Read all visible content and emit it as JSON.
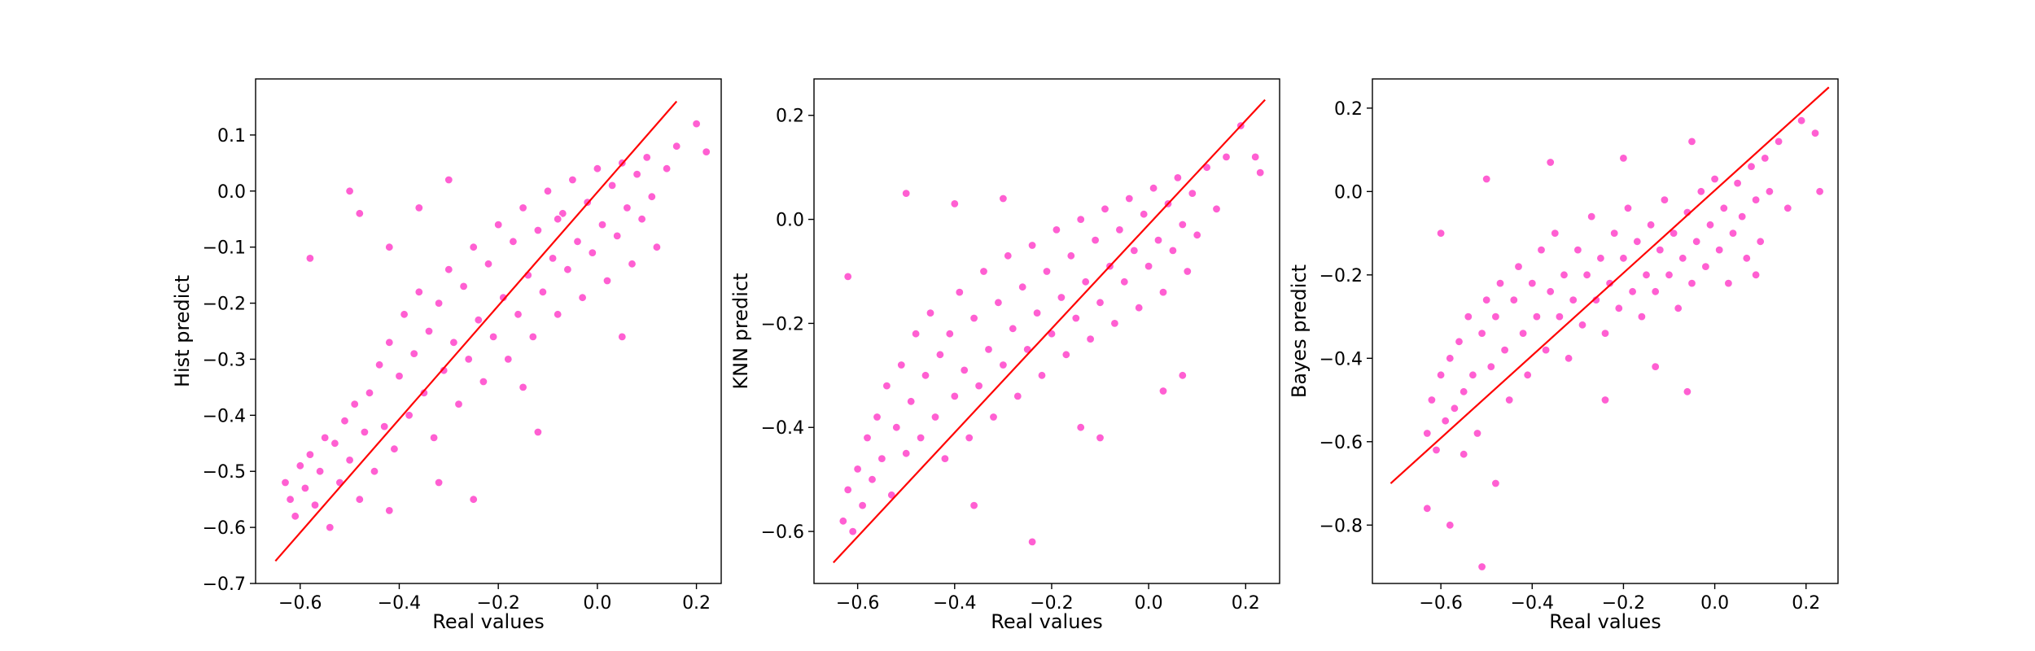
{
  "colors": {
    "points": "#ff5fd2",
    "reference_line": "#ff0000",
    "axes": "#000000",
    "background": "#ffffff"
  },
  "chart_data": [
    {
      "type": "scatter",
      "title": "",
      "xlabel": "Real values",
      "ylabel": "Hist predict",
      "xlim": [
        -0.69,
        0.25
      ],
      "ylim": [
        -0.7,
        0.2
      ],
      "xticks": [
        "−0.6",
        "−0.4",
        "−0.2",
        "0.0",
        "0.2"
      ],
      "xtick_values": [
        -0.6,
        -0.4,
        -0.2,
        0.0,
        0.2
      ],
      "yticks": [
        "−0.7",
        "−0.6",
        "−0.5",
        "−0.4",
        "−0.3",
        "−0.2",
        "−0.1",
        "0.0",
        "0.1"
      ],
      "ytick_values": [
        -0.7,
        -0.6,
        -0.5,
        -0.4,
        -0.3,
        -0.2,
        -0.1,
        0.0,
        0.1
      ],
      "reference_line": {
        "x": [
          -0.65,
          0.16
        ],
        "y": [
          -0.66,
          0.16
        ]
      },
      "grid": false,
      "legend": "none",
      "points": [
        [
          -0.63,
          -0.52
        ],
        [
          -0.62,
          -0.55
        ],
        [
          -0.61,
          -0.58
        ],
        [
          -0.6,
          -0.49
        ],
        [
          -0.59,
          -0.53
        ],
        [
          -0.58,
          -0.47
        ],
        [
          -0.57,
          -0.56
        ],
        [
          -0.56,
          -0.5
        ],
        [
          -0.55,
          -0.44
        ],
        [
          -0.54,
          -0.6
        ],
        [
          -0.53,
          -0.45
        ],
        [
          -0.52,
          -0.52
        ],
        [
          -0.51,
          -0.41
        ],
        [
          -0.5,
          -0.48
        ],
        [
          -0.49,
          -0.38
        ],
        [
          -0.48,
          -0.55
        ],
        [
          -0.47,
          -0.43
        ],
        [
          -0.46,
          -0.36
        ],
        [
          -0.45,
          -0.5
        ],
        [
          -0.44,
          -0.31
        ],
        [
          -0.43,
          -0.42
        ],
        [
          -0.42,
          -0.27
        ],
        [
          -0.41,
          -0.46
        ],
        [
          -0.4,
          -0.33
        ],
        [
          -0.39,
          -0.22
        ],
        [
          -0.38,
          -0.4
        ],
        [
          -0.37,
          -0.29
        ],
        [
          -0.36,
          -0.18
        ],
        [
          -0.35,
          -0.36
        ],
        [
          -0.34,
          -0.25
        ],
        [
          -0.33,
          -0.44
        ],
        [
          -0.32,
          -0.2
        ],
        [
          -0.31,
          -0.32
        ],
        [
          -0.3,
          -0.14
        ],
        [
          -0.29,
          -0.27
        ],
        [
          -0.28,
          -0.38
        ],
        [
          -0.27,
          -0.17
        ],
        [
          -0.26,
          -0.3
        ],
        [
          -0.25,
          -0.1
        ],
        [
          -0.24,
          -0.23
        ],
        [
          -0.23,
          -0.34
        ],
        [
          -0.22,
          -0.13
        ],
        [
          -0.21,
          -0.26
        ],
        [
          -0.2,
          -0.06
        ],
        [
          -0.19,
          -0.19
        ],
        [
          -0.18,
          -0.3
        ],
        [
          -0.17,
          -0.09
        ],
        [
          -0.16,
          -0.22
        ],
        [
          -0.15,
          -0.03
        ],
        [
          -0.14,
          -0.15
        ],
        [
          -0.13,
          -0.26
        ],
        [
          -0.12,
          -0.07
        ],
        [
          -0.11,
          -0.18
        ],
        [
          -0.1,
          0.0
        ],
        [
          -0.09,
          -0.12
        ],
        [
          -0.08,
          -0.22
        ],
        [
          -0.07,
          -0.04
        ],
        [
          -0.06,
          -0.14
        ],
        [
          -0.05,
          0.02
        ],
        [
          -0.04,
          -0.09
        ],
        [
          -0.03,
          -0.19
        ],
        [
          -0.02,
          -0.02
        ],
        [
          -0.01,
          -0.11
        ],
        [
          0.0,
          0.04
        ],
        [
          0.01,
          -0.06
        ],
        [
          0.02,
          -0.16
        ],
        [
          0.03,
          0.01
        ],
        [
          0.04,
          -0.08
        ],
        [
          0.05,
          0.05
        ],
        [
          0.06,
          -0.03
        ],
        [
          0.07,
          -0.13
        ],
        [
          0.08,
          0.03
        ],
        [
          0.09,
          -0.05
        ],
        [
          0.1,
          0.06
        ],
        [
          0.11,
          -0.01
        ],
        [
          0.12,
          -0.1
        ],
        [
          0.14,
          0.04
        ],
        [
          0.16,
          0.08
        ],
        [
          0.2,
          0.12
        ],
        [
          0.22,
          0.07
        ],
        [
          -0.58,
          -0.12
        ],
        [
          -0.5,
          0.0
        ],
        [
          -0.48,
          -0.04
        ],
        [
          -0.42,
          -0.1
        ],
        [
          -0.36,
          -0.03
        ],
        [
          -0.3,
          0.02
        ],
        [
          -0.25,
          -0.55
        ],
        [
          -0.32,
          -0.52
        ],
        [
          -0.42,
          -0.57
        ],
        [
          -0.12,
          -0.43
        ],
        [
          -0.08,
          -0.05
        ],
        [
          0.05,
          -0.26
        ],
        [
          -0.15,
          -0.35
        ]
      ]
    },
    {
      "type": "scatter",
      "title": "",
      "xlabel": "Real values",
      "ylabel": "KNN predict",
      "xlim": [
        -0.69,
        0.27
      ],
      "ylim": [
        -0.7,
        0.27
      ],
      "xticks": [
        "−0.6",
        "−0.4",
        "−0.2",
        "0.0",
        "0.2"
      ],
      "xtick_values": [
        -0.6,
        -0.4,
        -0.2,
        0.0,
        0.2
      ],
      "yticks": [
        "−0.6",
        "−0.4",
        "−0.2",
        "0.0",
        "0.2"
      ],
      "ytick_values": [
        -0.6,
        -0.4,
        -0.2,
        0.0,
        0.2
      ],
      "reference_line": {
        "x": [
          -0.65,
          0.24
        ],
        "y": [
          -0.66,
          0.23
        ]
      },
      "grid": false,
      "legend": "none",
      "points": [
        [
          -0.63,
          -0.58
        ],
        [
          -0.62,
          -0.52
        ],
        [
          -0.61,
          -0.6
        ],
        [
          -0.6,
          -0.48
        ],
        [
          -0.59,
          -0.55
        ],
        [
          -0.58,
          -0.42
        ],
        [
          -0.57,
          -0.5
        ],
        [
          -0.56,
          -0.38
        ],
        [
          -0.55,
          -0.46
        ],
        [
          -0.54,
          -0.32
        ],
        [
          -0.53,
          -0.53
        ],
        [
          -0.52,
          -0.4
        ],
        [
          -0.51,
          -0.28
        ],
        [
          -0.5,
          -0.45
        ],
        [
          -0.49,
          -0.35
        ],
        [
          -0.48,
          -0.22
        ],
        [
          -0.47,
          -0.42
        ],
        [
          -0.46,
          -0.3
        ],
        [
          -0.45,
          -0.18
        ],
        [
          -0.44,
          -0.38
        ],
        [
          -0.43,
          -0.26
        ],
        [
          -0.42,
          -0.46
        ],
        [
          -0.41,
          -0.22
        ],
        [
          -0.4,
          -0.34
        ],
        [
          -0.39,
          -0.14
        ],
        [
          -0.38,
          -0.29
        ],
        [
          -0.37,
          -0.42
        ],
        [
          -0.36,
          -0.19
        ],
        [
          -0.35,
          -0.32
        ],
        [
          -0.34,
          -0.1
        ],
        [
          -0.33,
          -0.25
        ],
        [
          -0.32,
          -0.38
        ],
        [
          -0.31,
          -0.16
        ],
        [
          -0.3,
          -0.28
        ],
        [
          -0.29,
          -0.07
        ],
        [
          -0.28,
          -0.21
        ],
        [
          -0.27,
          -0.34
        ],
        [
          -0.26,
          -0.13
        ],
        [
          -0.25,
          -0.25
        ],
        [
          -0.24,
          -0.05
        ],
        [
          -0.23,
          -0.18
        ],
        [
          -0.22,
          -0.3
        ],
        [
          -0.21,
          -0.1
        ],
        [
          -0.2,
          -0.22
        ],
        [
          -0.19,
          -0.02
        ],
        [
          -0.18,
          -0.15
        ],
        [
          -0.17,
          -0.26
        ],
        [
          -0.16,
          -0.07
        ],
        [
          -0.15,
          -0.19
        ],
        [
          -0.14,
          0.0
        ],
        [
          -0.13,
          -0.12
        ],
        [
          -0.12,
          -0.23
        ],
        [
          -0.11,
          -0.04
        ],
        [
          -0.1,
          -0.16
        ],
        [
          -0.09,
          0.02
        ],
        [
          -0.08,
          -0.09
        ],
        [
          -0.07,
          -0.2
        ],
        [
          -0.06,
          -0.02
        ],
        [
          -0.05,
          -0.12
        ],
        [
          -0.04,
          0.04
        ],
        [
          -0.03,
          -0.06
        ],
        [
          -0.02,
          -0.17
        ],
        [
          -0.01,
          0.01
        ],
        [
          0.0,
          -0.09
        ],
        [
          0.01,
          0.06
        ],
        [
          0.02,
          -0.04
        ],
        [
          0.03,
          -0.14
        ],
        [
          0.04,
          0.03
        ],
        [
          0.05,
          -0.06
        ],
        [
          0.06,
          0.08
        ],
        [
          0.07,
          -0.01
        ],
        [
          0.08,
          -0.1
        ],
        [
          0.09,
          0.05
        ],
        [
          0.1,
          -0.03
        ],
        [
          0.12,
          0.1
        ],
        [
          0.14,
          0.02
        ],
        [
          0.16,
          0.12
        ],
        [
          0.19,
          0.18
        ],
        [
          0.22,
          0.12
        ],
        [
          0.23,
          0.09
        ],
        [
          -0.62,
          -0.11
        ],
        [
          -0.5,
          0.05
        ],
        [
          -0.4,
          0.03
        ],
        [
          -0.3,
          0.04
        ],
        [
          -0.24,
          -0.62
        ],
        [
          -0.14,
          -0.4
        ],
        [
          -0.1,
          -0.42
        ],
        [
          0.03,
          -0.33
        ],
        [
          0.07,
          -0.3
        ],
        [
          -0.36,
          -0.55
        ]
      ]
    },
    {
      "type": "scatter",
      "title": "",
      "xlabel": "Real values",
      "ylabel": "Bayes predict",
      "xlim": [
        -0.75,
        0.27
      ],
      "ylim": [
        -0.94,
        0.27
      ],
      "xticks": [
        "−0.6",
        "−0.4",
        "−0.2",
        "0.0",
        "0.2"
      ],
      "xtick_values": [
        -0.6,
        -0.4,
        -0.2,
        0.0,
        0.2
      ],
      "yticks": [
        "−0.8",
        "−0.6",
        "−0.4",
        "−0.2",
        "0.0",
        "0.2"
      ],
      "ytick_values": [
        -0.8,
        -0.6,
        -0.4,
        -0.2,
        0.0,
        0.2
      ],
      "reference_line": {
        "x": [
          -0.71,
          0.25
        ],
        "y": [
          -0.7,
          0.25
        ]
      },
      "grid": false,
      "legend": "none",
      "points": [
        [
          -0.63,
          -0.58
        ],
        [
          -0.62,
          -0.5
        ],
        [
          -0.61,
          -0.62
        ],
        [
          -0.6,
          -0.44
        ],
        [
          -0.59,
          -0.55
        ],
        [
          -0.58,
          -0.4
        ],
        [
          -0.57,
          -0.52
        ],
        [
          -0.56,
          -0.36
        ],
        [
          -0.55,
          -0.48
        ],
        [
          -0.54,
          -0.3
        ],
        [
          -0.53,
          -0.44
        ],
        [
          -0.52,
          -0.58
        ],
        [
          -0.51,
          -0.34
        ],
        [
          -0.5,
          -0.26
        ],
        [
          -0.49,
          -0.42
        ],
        [
          -0.48,
          -0.3
        ],
        [
          -0.47,
          -0.22
        ],
        [
          -0.46,
          -0.38
        ],
        [
          -0.45,
          -0.5
        ],
        [
          -0.44,
          -0.26
        ],
        [
          -0.43,
          -0.18
        ],
        [
          -0.42,
          -0.34
        ],
        [
          -0.41,
          -0.44
        ],
        [
          -0.4,
          -0.22
        ],
        [
          -0.39,
          -0.3
        ],
        [
          -0.38,
          -0.14
        ],
        [
          -0.37,
          -0.38
        ],
        [
          -0.36,
          -0.24
        ],
        [
          -0.35,
          -0.1
        ],
        [
          -0.34,
          -0.3
        ],
        [
          -0.33,
          -0.2
        ],
        [
          -0.32,
          -0.4
        ],
        [
          -0.31,
          -0.26
        ],
        [
          -0.3,
          -0.14
        ],
        [
          -0.29,
          -0.32
        ],
        [
          -0.28,
          -0.2
        ],
        [
          -0.27,
          -0.06
        ],
        [
          -0.26,
          -0.26
        ],
        [
          -0.25,
          -0.16
        ],
        [
          -0.24,
          -0.34
        ],
        [
          -0.23,
          -0.22
        ],
        [
          -0.22,
          -0.1
        ],
        [
          -0.21,
          -0.28
        ],
        [
          -0.2,
          -0.16
        ],
        [
          -0.19,
          -0.04
        ],
        [
          -0.18,
          -0.24
        ],
        [
          -0.17,
          -0.12
        ],
        [
          -0.16,
          -0.3
        ],
        [
          -0.15,
          -0.2
        ],
        [
          -0.14,
          -0.08
        ],
        [
          -0.13,
          -0.24
        ],
        [
          -0.12,
          -0.14
        ],
        [
          -0.11,
          -0.02
        ],
        [
          -0.1,
          -0.2
        ],
        [
          -0.09,
          -0.1
        ],
        [
          -0.08,
          -0.28
        ],
        [
          -0.07,
          -0.16
        ],
        [
          -0.06,
          -0.05
        ],
        [
          -0.05,
          -0.22
        ],
        [
          -0.04,
          -0.12
        ],
        [
          -0.03,
          0.0
        ],
        [
          -0.02,
          -0.18
        ],
        [
          -0.01,
          -0.08
        ],
        [
          0.0,
          0.03
        ],
        [
          0.01,
          -0.14
        ],
        [
          0.02,
          -0.04
        ],
        [
          0.03,
          -0.22
        ],
        [
          0.04,
          -0.1
        ],
        [
          0.05,
          0.02
        ],
        [
          0.06,
          -0.06
        ],
        [
          0.07,
          -0.16
        ],
        [
          0.08,
          0.06
        ],
        [
          0.09,
          -0.02
        ],
        [
          0.1,
          -0.12
        ],
        [
          0.11,
          0.08
        ],
        [
          0.12,
          0.0
        ],
        [
          0.14,
          0.12
        ],
        [
          0.16,
          -0.04
        ],
        [
          0.19,
          0.17
        ],
        [
          0.22,
          0.14
        ],
        [
          0.23,
          0.0
        ],
        [
          -0.63,
          -0.76
        ],
        [
          -0.58,
          -0.8
        ],
        [
          -0.51,
          -0.9
        ],
        [
          -0.48,
          -0.7
        ],
        [
          -0.55,
          -0.63
        ],
        [
          -0.6,
          -0.1
        ],
        [
          -0.5,
          0.03
        ],
        [
          -0.36,
          0.07
        ],
        [
          -0.2,
          0.08
        ],
        [
          -0.05,
          0.12
        ],
        [
          -0.06,
          -0.48
        ],
        [
          -0.13,
          -0.42
        ],
        [
          0.09,
          -0.2
        ],
        [
          -0.24,
          -0.5
        ]
      ]
    }
  ]
}
